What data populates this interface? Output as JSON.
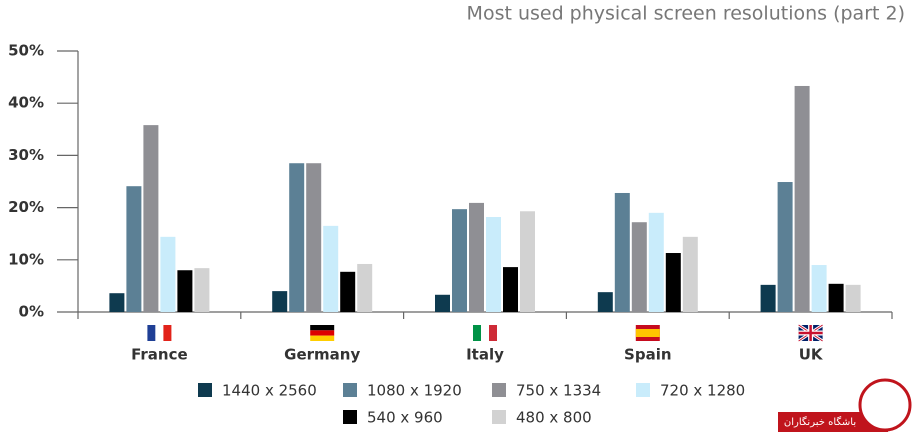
{
  "chart_data": {
    "type": "bar",
    "title": "Most used physical screen resolutions (part 2)",
    "categories": [
      "France",
      "Germany",
      "Italy",
      "Spain",
      "UK"
    ],
    "series": [
      {
        "name": "1440 x 2560",
        "color": "#0e3a4f",
        "values": [
          3.6,
          4.0,
          3.3,
          3.8,
          5.2
        ]
      },
      {
        "name": "1080 x 1920",
        "color": "#5c8095",
        "values": [
          24.1,
          28.5,
          19.7,
          22.8,
          24.9
        ]
      },
      {
        "name": "750 x 1334",
        "color": "#8f8f94",
        "values": [
          35.8,
          28.5,
          20.9,
          17.2,
          43.3
        ]
      },
      {
        "name": "720 x 1280",
        "color": "#c9ecfb",
        "values": [
          14.4,
          16.5,
          18.2,
          19.0,
          9.0
        ]
      },
      {
        "name": "540 x 960",
        "color": "#000000",
        "values": [
          8.0,
          7.7,
          8.6,
          11.3,
          5.4
        ]
      },
      {
        "name": "480 x 800",
        "color": "#d2d2d2",
        "values": [
          8.4,
          9.2,
          19.3,
          14.4,
          5.2
        ]
      }
    ],
    "ylim": [
      0,
      50
    ],
    "yticks": [
      {
        "value": 0,
        "label": "0%"
      },
      {
        "value": 10,
        "label": "10%"
      },
      {
        "value": 20,
        "label": "20%"
      },
      {
        "value": 30,
        "label": "30%"
      },
      {
        "value": 40,
        "label": "40%"
      },
      {
        "value": 50,
        "label": "50%"
      }
    ],
    "grid": false,
    "watermark": "باشگاه خبرنگاران"
  }
}
